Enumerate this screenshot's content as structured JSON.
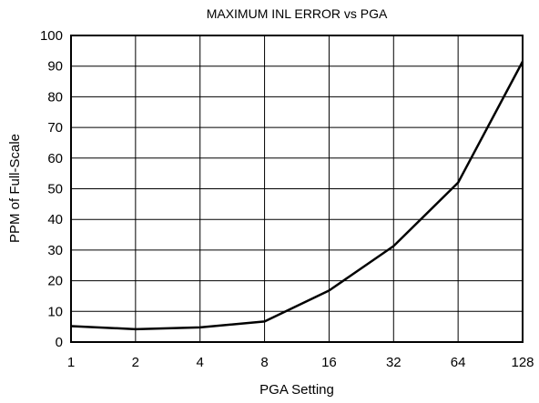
{
  "chart_data": {
    "type": "line",
    "title": "MAXIMUM INL ERROR vs PGA",
    "xlabel": "PGA Setting",
    "ylabel": "PPM of Full-Scale",
    "x_scale": "log2",
    "categories": [
      "1",
      "2",
      "4",
      "8",
      "16",
      "32",
      "64",
      "128"
    ],
    "y_ticks": [
      "0",
      "10",
      "20",
      "30",
      "40",
      "50",
      "60",
      "70",
      "80",
      "90",
      "100"
    ],
    "ylim": [
      0,
      100
    ],
    "grid": true,
    "series": [
      {
        "values": [
          5.2,
          4.2,
          4.8,
          6.7,
          16.8,
          31.3,
          52.0,
          91.5
        ]
      }
    ]
  }
}
